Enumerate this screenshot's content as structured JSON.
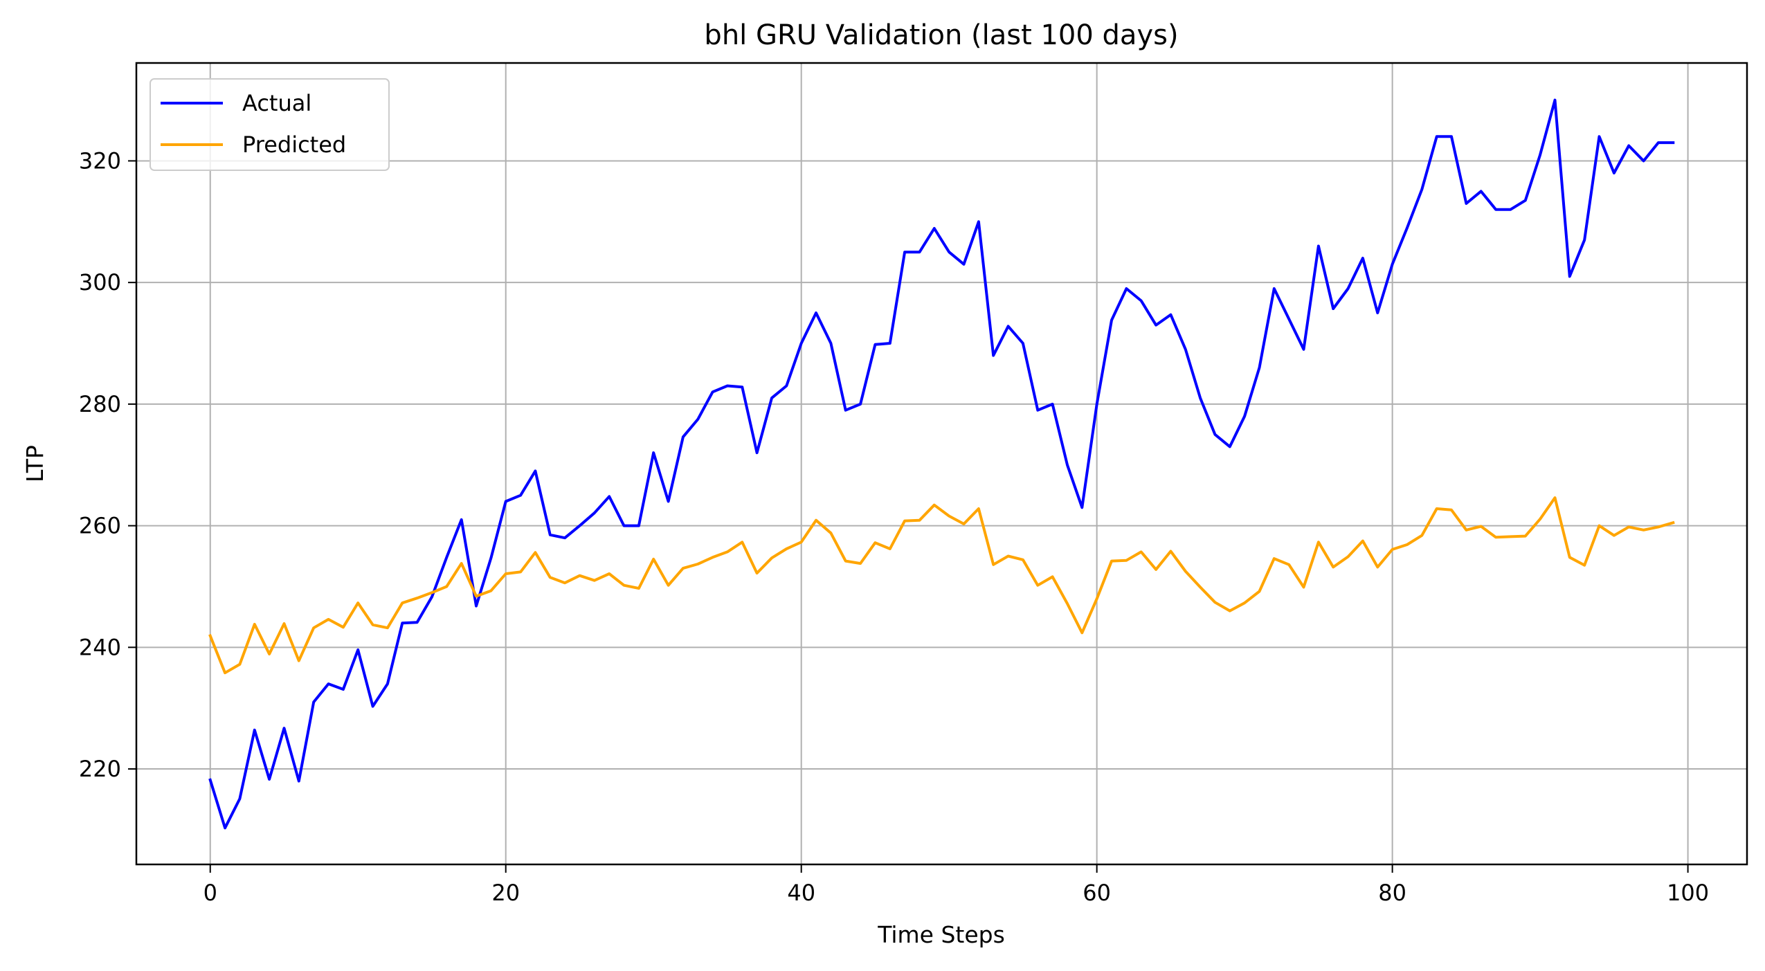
{
  "chart_data": {
    "type": "line",
    "title": "bhl GRU Validation (last 100 days)",
    "xlabel": "Time Steps",
    "ylabel": "LTP",
    "xlim": [
      -5,
      104
    ],
    "ylim": [
      204.3,
      336.1
    ],
    "xticks": [
      0,
      20,
      40,
      60,
      80,
      100
    ],
    "yticks": [
      220,
      240,
      260,
      280,
      300,
      320
    ],
    "grid": true,
    "legend_position": "top-left",
    "series": [
      {
        "name": "Actual",
        "color": "#0000ff",
        "values": [
          218.2,
          210.3,
          215.1,
          226.4,
          218.3,
          226.7,
          218.0,
          231.0,
          234.0,
          233.1,
          239.6,
          230.3,
          234.0,
          244.0,
          244.1,
          248.3,
          254.8,
          261.0,
          246.8,
          254.7,
          264.0,
          265.0,
          269.0,
          258.5,
          258.0,
          260.0,
          262.1,
          264.8,
          260.0,
          260.0,
          272.0,
          264.0,
          274.6,
          277.5,
          282.0,
          283.0,
          282.8,
          272.0,
          281.0,
          283.0,
          290.0,
          295.0,
          290.0,
          279.0,
          280.0,
          289.8,
          290.0,
          305.0,
          305.0,
          308.9,
          305.0,
          303.0,
          310.0,
          288.0,
          292.8,
          290.0,
          279.0,
          280.0,
          270.0,
          263.0,
          280.0,
          293.8,
          299.0,
          297.0,
          293.0,
          294.7,
          289.0,
          281.0,
          275.0,
          273.0,
          278.0,
          286.0,
          299.0,
          294.0,
          289.0,
          306.0,
          295.7,
          299.0,
          304.0,
          295.0,
          303.0,
          309.0,
          315.3,
          324.0,
          324.0,
          313.0,
          315.0,
          312.0,
          312.0,
          313.5,
          321.0,
          330.0,
          301.0,
          307.0,
          324.0,
          318.0,
          322.5,
          320.0,
          323.0,
          323.0
        ]
      },
      {
        "name": "Predicted",
        "color": "#ffa500",
        "values": [
          241.9,
          235.8,
          237.2,
          243.8,
          238.9,
          243.9,
          237.8,
          243.2,
          244.6,
          243.3,
          247.3,
          243.7,
          243.2,
          247.3,
          248.1,
          249.0,
          250.0,
          253.8,
          248.4,
          249.3,
          252.1,
          252.4,
          255.6,
          251.5,
          250.6,
          251.8,
          251.0,
          252.1,
          250.2,
          249.7,
          254.5,
          250.2,
          253.0,
          253.7,
          254.8,
          255.7,
          257.3,
          252.2,
          254.7,
          256.2,
          257.3,
          260.9,
          258.8,
          254.2,
          253.8,
          257.2,
          256.2,
          260.8,
          260.9,
          263.4,
          261.6,
          260.3,
          262.8,
          253.6,
          255.0,
          254.4,
          250.2,
          251.6,
          247.2,
          242.4,
          248.0,
          254.2,
          254.3,
          255.7,
          252.8,
          255.8,
          252.5,
          249.9,
          247.4,
          246.0,
          247.3,
          249.2,
          254.6,
          253.6,
          249.9,
          257.3,
          253.2,
          254.9,
          257.5,
          253.2,
          256.1,
          256.9,
          258.4,
          262.8,
          262.6,
          259.3,
          259.9,
          258.1,
          258.2,
          258.3,
          261.1,
          264.6,
          254.8,
          253.5,
          260.0,
          258.4,
          259.8,
          259.3,
          259.8,
          260.5
        ]
      }
    ]
  }
}
